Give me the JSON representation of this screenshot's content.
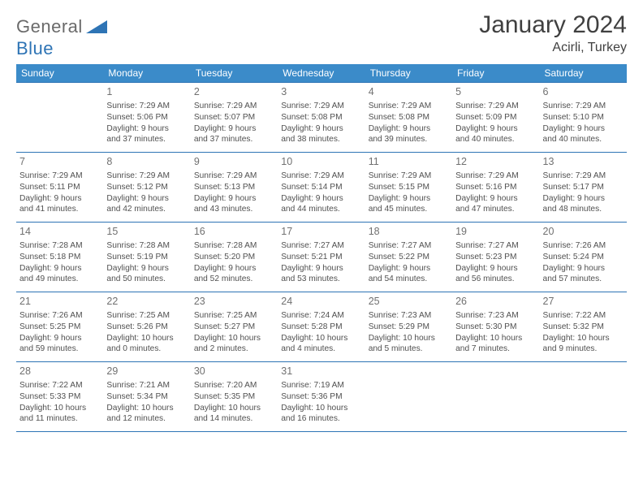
{
  "brand": {
    "general": "General",
    "blue": "Blue"
  },
  "title": "January 2024",
  "location": "Acirli, Turkey",
  "colors": {
    "header_bg": "#3b8bc9",
    "header_text": "#ffffff",
    "cell_border": "#2e74b5",
    "text": "#4a4a4a",
    "daynum": "#707070",
    "brand_blue": "#2e74b5"
  },
  "weekdays": [
    "Sunday",
    "Monday",
    "Tuesday",
    "Wednesday",
    "Thursday",
    "Friday",
    "Saturday"
  ],
  "weeks": [
    [
      null,
      {
        "n": "1",
        "sr": "Sunrise: 7:29 AM",
        "ss": "Sunset: 5:06 PM",
        "d1": "Daylight: 9 hours",
        "d2": "and 37 minutes."
      },
      {
        "n": "2",
        "sr": "Sunrise: 7:29 AM",
        "ss": "Sunset: 5:07 PM",
        "d1": "Daylight: 9 hours",
        "d2": "and 37 minutes."
      },
      {
        "n": "3",
        "sr": "Sunrise: 7:29 AM",
        "ss": "Sunset: 5:08 PM",
        "d1": "Daylight: 9 hours",
        "d2": "and 38 minutes."
      },
      {
        "n": "4",
        "sr": "Sunrise: 7:29 AM",
        "ss": "Sunset: 5:08 PM",
        "d1": "Daylight: 9 hours",
        "d2": "and 39 minutes."
      },
      {
        "n": "5",
        "sr": "Sunrise: 7:29 AM",
        "ss": "Sunset: 5:09 PM",
        "d1": "Daylight: 9 hours",
        "d2": "and 40 minutes."
      },
      {
        "n": "6",
        "sr": "Sunrise: 7:29 AM",
        "ss": "Sunset: 5:10 PM",
        "d1": "Daylight: 9 hours",
        "d2": "and 40 minutes."
      }
    ],
    [
      {
        "n": "7",
        "sr": "Sunrise: 7:29 AM",
        "ss": "Sunset: 5:11 PM",
        "d1": "Daylight: 9 hours",
        "d2": "and 41 minutes."
      },
      {
        "n": "8",
        "sr": "Sunrise: 7:29 AM",
        "ss": "Sunset: 5:12 PM",
        "d1": "Daylight: 9 hours",
        "d2": "and 42 minutes."
      },
      {
        "n": "9",
        "sr": "Sunrise: 7:29 AM",
        "ss": "Sunset: 5:13 PM",
        "d1": "Daylight: 9 hours",
        "d2": "and 43 minutes."
      },
      {
        "n": "10",
        "sr": "Sunrise: 7:29 AM",
        "ss": "Sunset: 5:14 PM",
        "d1": "Daylight: 9 hours",
        "d2": "and 44 minutes."
      },
      {
        "n": "11",
        "sr": "Sunrise: 7:29 AM",
        "ss": "Sunset: 5:15 PM",
        "d1": "Daylight: 9 hours",
        "d2": "and 45 minutes."
      },
      {
        "n": "12",
        "sr": "Sunrise: 7:29 AM",
        "ss": "Sunset: 5:16 PM",
        "d1": "Daylight: 9 hours",
        "d2": "and 47 minutes."
      },
      {
        "n": "13",
        "sr": "Sunrise: 7:29 AM",
        "ss": "Sunset: 5:17 PM",
        "d1": "Daylight: 9 hours",
        "d2": "and 48 minutes."
      }
    ],
    [
      {
        "n": "14",
        "sr": "Sunrise: 7:28 AM",
        "ss": "Sunset: 5:18 PM",
        "d1": "Daylight: 9 hours",
        "d2": "and 49 minutes."
      },
      {
        "n": "15",
        "sr": "Sunrise: 7:28 AM",
        "ss": "Sunset: 5:19 PM",
        "d1": "Daylight: 9 hours",
        "d2": "and 50 minutes."
      },
      {
        "n": "16",
        "sr": "Sunrise: 7:28 AM",
        "ss": "Sunset: 5:20 PM",
        "d1": "Daylight: 9 hours",
        "d2": "and 52 minutes."
      },
      {
        "n": "17",
        "sr": "Sunrise: 7:27 AM",
        "ss": "Sunset: 5:21 PM",
        "d1": "Daylight: 9 hours",
        "d2": "and 53 minutes."
      },
      {
        "n": "18",
        "sr": "Sunrise: 7:27 AM",
        "ss": "Sunset: 5:22 PM",
        "d1": "Daylight: 9 hours",
        "d2": "and 54 minutes."
      },
      {
        "n": "19",
        "sr": "Sunrise: 7:27 AM",
        "ss": "Sunset: 5:23 PM",
        "d1": "Daylight: 9 hours",
        "d2": "and 56 minutes."
      },
      {
        "n": "20",
        "sr": "Sunrise: 7:26 AM",
        "ss": "Sunset: 5:24 PM",
        "d1": "Daylight: 9 hours",
        "d2": "and 57 minutes."
      }
    ],
    [
      {
        "n": "21",
        "sr": "Sunrise: 7:26 AM",
        "ss": "Sunset: 5:25 PM",
        "d1": "Daylight: 9 hours",
        "d2": "and 59 minutes."
      },
      {
        "n": "22",
        "sr": "Sunrise: 7:25 AM",
        "ss": "Sunset: 5:26 PM",
        "d1": "Daylight: 10 hours",
        "d2": "and 0 minutes."
      },
      {
        "n": "23",
        "sr": "Sunrise: 7:25 AM",
        "ss": "Sunset: 5:27 PM",
        "d1": "Daylight: 10 hours",
        "d2": "and 2 minutes."
      },
      {
        "n": "24",
        "sr": "Sunrise: 7:24 AM",
        "ss": "Sunset: 5:28 PM",
        "d1": "Daylight: 10 hours",
        "d2": "and 4 minutes."
      },
      {
        "n": "25",
        "sr": "Sunrise: 7:23 AM",
        "ss": "Sunset: 5:29 PM",
        "d1": "Daylight: 10 hours",
        "d2": "and 5 minutes."
      },
      {
        "n": "26",
        "sr": "Sunrise: 7:23 AM",
        "ss": "Sunset: 5:30 PM",
        "d1": "Daylight: 10 hours",
        "d2": "and 7 minutes."
      },
      {
        "n": "27",
        "sr": "Sunrise: 7:22 AM",
        "ss": "Sunset: 5:32 PM",
        "d1": "Daylight: 10 hours",
        "d2": "and 9 minutes."
      }
    ],
    [
      {
        "n": "28",
        "sr": "Sunrise: 7:22 AM",
        "ss": "Sunset: 5:33 PM",
        "d1": "Daylight: 10 hours",
        "d2": "and 11 minutes."
      },
      {
        "n": "29",
        "sr": "Sunrise: 7:21 AM",
        "ss": "Sunset: 5:34 PM",
        "d1": "Daylight: 10 hours",
        "d2": "and 12 minutes."
      },
      {
        "n": "30",
        "sr": "Sunrise: 7:20 AM",
        "ss": "Sunset: 5:35 PM",
        "d1": "Daylight: 10 hours",
        "d2": "and 14 minutes."
      },
      {
        "n": "31",
        "sr": "Sunrise: 7:19 AM",
        "ss": "Sunset: 5:36 PM",
        "d1": "Daylight: 10 hours",
        "d2": "and 16 minutes."
      },
      null,
      null,
      null
    ]
  ]
}
